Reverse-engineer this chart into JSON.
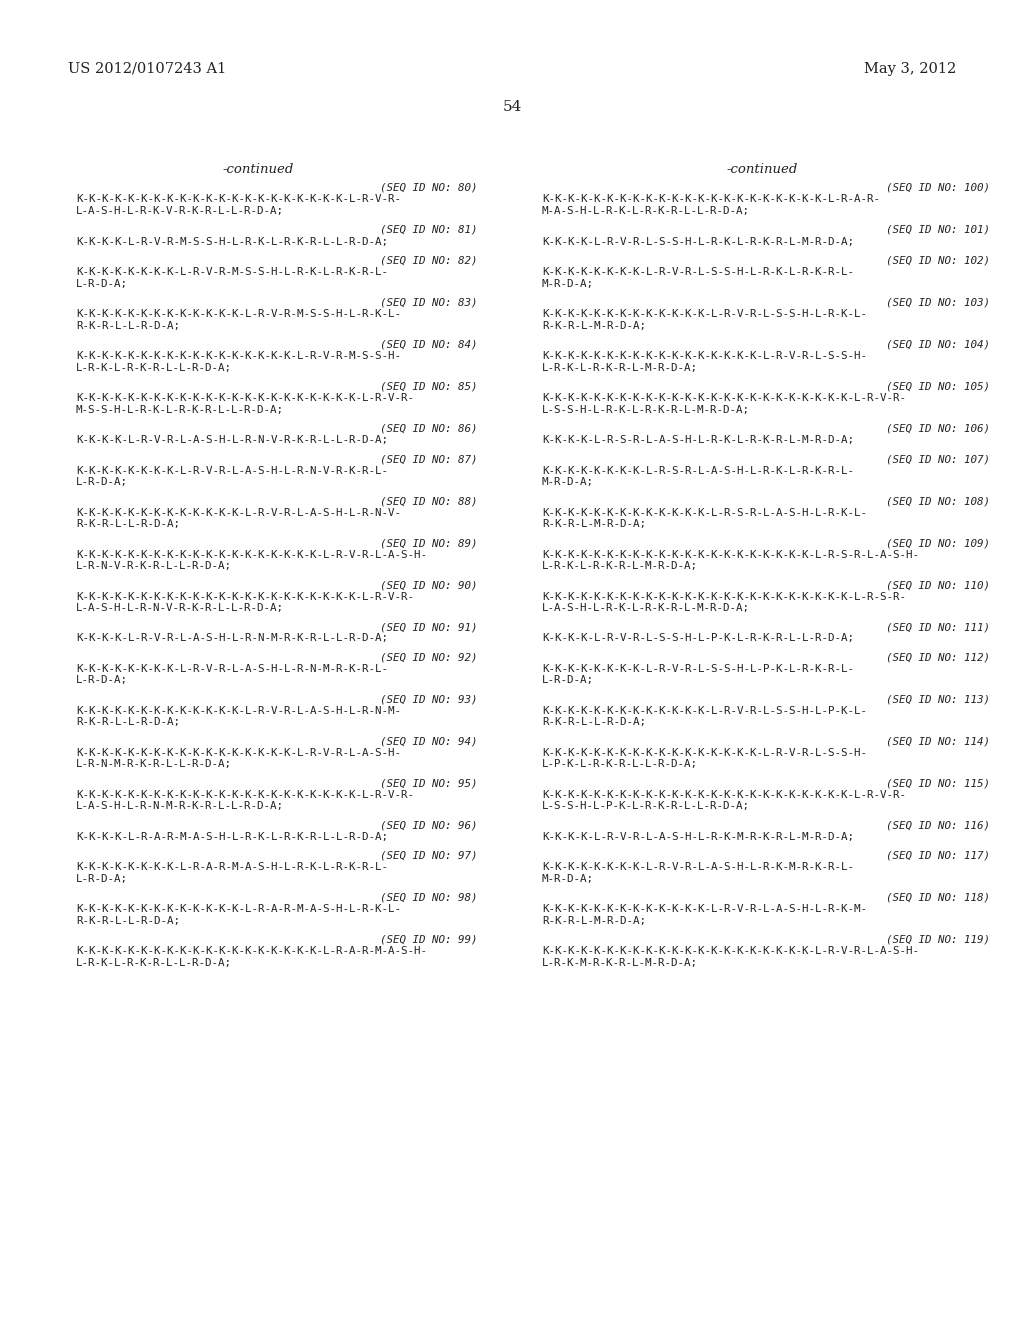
{
  "bg_color": "#ffffff",
  "header_left": "US 2012/0107243 A1",
  "header_right": "May 3, 2012",
  "page_number": "54",
  "continued_left": "-continued",
  "continued_right": "-continued",
  "left_column": [
    {
      "seq": "(SEQ ID NO: 80)",
      "text": "K-K-K-K-K-K-K-K-K-K-K-K-K-K-K-K-K-K-K-K-K-L-R-V-R-\nL-A-S-H-L-R-K-V-R-K-R-L-L-R-D-A;"
    },
    {
      "seq": "(SEQ ID NO: 81)",
      "text": "K-K-K-K-L-R-V-R-M-S-S-H-L-R-K-L-R-K-R-L-L-R-D-A;"
    },
    {
      "seq": "(SEQ ID NO: 82)",
      "text": "K-K-K-K-K-K-K-K-L-R-V-R-M-S-S-H-L-R-K-L-R-K-R-L-\nL-R-D-A;"
    },
    {
      "seq": "(SEQ ID NO: 83)",
      "text": "K-K-K-K-K-K-K-K-K-K-K-K-K-L-R-V-R-M-S-S-H-L-R-K-L-\nR-K-R-L-L-R-D-A;"
    },
    {
      "seq": "(SEQ ID NO: 84)",
      "text": "K-K-K-K-K-K-K-K-K-K-K-K-K-K-K-K-K-L-R-V-R-M-S-S-H-\nL-R-K-L-R-K-R-L-L-R-D-A;"
    },
    {
      "seq": "(SEQ ID NO: 85)",
      "text": "K-K-K-K-K-K-K-K-K-K-K-K-K-K-K-K-K-K-K-K-K-K-L-R-V-R-\nM-S-S-H-L-R-K-L-R-K-R-L-L-R-D-A;"
    },
    {
      "seq": "(SEQ ID NO: 86)",
      "text": "K-K-K-K-L-R-V-R-L-A-S-H-L-R-N-V-R-K-R-L-L-R-D-A;"
    },
    {
      "seq": "(SEQ ID NO: 87)",
      "text": "K-K-K-K-K-K-K-K-L-R-V-R-L-A-S-H-L-R-N-V-R-K-R-L-\nL-R-D-A;"
    },
    {
      "seq": "(SEQ ID NO: 88)",
      "text": "K-K-K-K-K-K-K-K-K-K-K-K-K-L-R-V-R-L-A-S-H-L-R-N-V-\nR-K-R-L-L-R-D-A;"
    },
    {
      "seq": "(SEQ ID NO: 89)",
      "text": "K-K-K-K-K-K-K-K-K-K-K-K-K-K-K-K-K-K-K-L-R-V-R-L-A-S-H-\nL-R-N-V-R-K-R-L-L-R-D-A;"
    },
    {
      "seq": "(SEQ ID NO: 90)",
      "text": "K-K-K-K-K-K-K-K-K-K-K-K-K-K-K-K-K-K-K-K-K-K-L-R-V-R-\nL-A-S-H-L-R-N-V-R-K-R-L-L-R-D-A;"
    },
    {
      "seq": "(SEQ ID NO: 91)",
      "text": "K-K-K-K-L-R-V-R-L-A-S-H-L-R-N-M-R-K-R-L-L-R-D-A;"
    },
    {
      "seq": "(SEQ ID NO: 92)",
      "text": "K-K-K-K-K-K-K-K-L-R-V-R-L-A-S-H-L-R-N-M-R-K-R-L-\nL-R-D-A;"
    },
    {
      "seq": "(SEQ ID NO: 93)",
      "text": "K-K-K-K-K-K-K-K-K-K-K-K-K-L-R-V-R-L-A-S-H-L-R-N-M-\nR-K-R-L-L-R-D-A;"
    },
    {
      "seq": "(SEQ ID NO: 94)",
      "text": "K-K-K-K-K-K-K-K-K-K-K-K-K-K-K-K-K-L-R-V-R-L-A-S-H-\nL-R-N-M-R-K-R-L-L-R-D-A;"
    },
    {
      "seq": "(SEQ ID NO: 95)",
      "text": "K-K-K-K-K-K-K-K-K-K-K-K-K-K-K-K-K-K-K-K-K-K-L-R-V-R-\nL-A-S-H-L-R-N-M-R-K-R-L-L-R-D-A;"
    },
    {
      "seq": "(SEQ ID NO: 96)",
      "text": "K-K-K-K-L-R-A-R-M-A-S-H-L-R-K-L-R-K-R-L-L-R-D-A;"
    },
    {
      "seq": "(SEQ ID NO: 97)",
      "text": "K-K-K-K-K-K-K-K-L-R-A-R-M-A-S-H-L-R-K-L-R-K-R-L-\nL-R-D-A;"
    },
    {
      "seq": "(SEQ ID NO: 98)",
      "text": "K-K-K-K-K-K-K-K-K-K-K-K-K-L-R-A-R-M-A-S-H-L-R-K-L-\nR-K-R-L-L-R-D-A;"
    },
    {
      "seq": "(SEQ ID NO: 99)",
      "text": "K-K-K-K-K-K-K-K-K-K-K-K-K-K-K-K-K-K-K-L-R-A-R-M-A-S-H-\nL-R-K-L-R-K-R-L-L-R-D-A;"
    }
  ],
  "right_column": [
    {
      "seq": "(SEQ ID NO: 100)",
      "text": "K-K-K-K-K-K-K-K-K-K-K-K-K-K-K-K-K-K-K-K-K-K-L-R-A-R-\nM-A-S-H-L-R-K-L-R-K-R-L-L-R-D-A;"
    },
    {
      "seq": "(SEQ ID NO: 101)",
      "text": "K-K-K-K-L-R-V-R-L-S-S-H-L-R-K-L-R-K-R-L-M-R-D-A;"
    },
    {
      "seq": "(SEQ ID NO: 102)",
      "text": "K-K-K-K-K-K-K-K-L-R-V-R-L-S-S-H-L-R-K-L-R-K-R-L-\nM-R-D-A;"
    },
    {
      "seq": "(SEQ ID NO: 103)",
      "text": "K-K-K-K-K-K-K-K-K-K-K-K-K-L-R-V-R-L-S-S-H-L-R-K-L-\nR-K-R-L-M-R-D-A;"
    },
    {
      "seq": "(SEQ ID NO: 104)",
      "text": "K-K-K-K-K-K-K-K-K-K-K-K-K-K-K-K-K-L-R-V-R-L-S-S-H-\nL-R-K-L-R-K-R-L-M-R-D-A;"
    },
    {
      "seq": "(SEQ ID NO: 105)",
      "text": "K-K-K-K-K-K-K-K-K-K-K-K-K-K-K-K-K-K-K-K-K-K-K-K-L-R-V-R-\nL-S-S-H-L-R-K-L-R-K-R-L-M-R-D-A;"
    },
    {
      "seq": "(SEQ ID NO: 106)",
      "text": "K-K-K-K-L-R-S-R-L-A-S-H-L-R-K-L-R-K-R-L-M-R-D-A;"
    },
    {
      "seq": "(SEQ ID NO: 107)",
      "text": "K-K-K-K-K-K-K-K-L-R-S-R-L-A-S-H-L-R-K-L-R-K-R-L-\nM-R-D-A;"
    },
    {
      "seq": "(SEQ ID NO: 108)",
      "text": "K-K-K-K-K-K-K-K-K-K-K-K-K-L-R-S-R-L-A-S-H-L-R-K-L-\nR-K-R-L-M-R-D-A;"
    },
    {
      "seq": "(SEQ ID NO: 109)",
      "text": "K-K-K-K-K-K-K-K-K-K-K-K-K-K-K-K-K-K-K-K-K-L-R-S-R-L-A-S-H-\nL-R-K-L-R-K-R-L-M-R-D-A;"
    },
    {
      "seq": "(SEQ ID NO: 110)",
      "text": "K-K-K-K-K-K-K-K-K-K-K-K-K-K-K-K-K-K-K-K-K-K-K-K-L-R-S-R-\nL-A-S-H-L-R-K-L-R-K-R-L-M-R-D-A;"
    },
    {
      "seq": "(SEQ ID NO: 111)",
      "text": "K-K-K-K-L-R-V-R-L-S-S-H-L-P-K-L-R-K-R-L-L-R-D-A;"
    },
    {
      "seq": "(SEQ ID NO: 112)",
      "text": "K-K-K-K-K-K-K-K-L-R-V-R-L-S-S-H-L-P-K-L-R-K-R-L-\nL-R-D-A;"
    },
    {
      "seq": "(SEQ ID NO: 113)",
      "text": "K-K-K-K-K-K-K-K-K-K-K-K-K-L-R-V-R-L-S-S-H-L-P-K-L-\nR-K-R-L-L-R-D-A;"
    },
    {
      "seq": "(SEQ ID NO: 114)",
      "text": "K-K-K-K-K-K-K-K-K-K-K-K-K-K-K-K-K-L-R-V-R-L-S-S-H-\nL-P-K-L-R-K-R-L-L-R-D-A;"
    },
    {
      "seq": "(SEQ ID NO: 115)",
      "text": "K-K-K-K-K-K-K-K-K-K-K-K-K-K-K-K-K-K-K-K-K-K-K-K-L-R-V-R-\nL-S-S-H-L-P-K-L-R-K-R-L-L-R-D-A;"
    },
    {
      "seq": "(SEQ ID NO: 116)",
      "text": "K-K-K-K-L-R-V-R-L-A-S-H-L-R-K-M-R-K-R-L-M-R-D-A;"
    },
    {
      "seq": "(SEQ ID NO: 117)",
      "text": "K-K-K-K-K-K-K-K-L-R-V-R-L-A-S-H-L-R-K-M-R-K-R-L-\nM-R-D-A;"
    },
    {
      "seq": "(SEQ ID NO: 118)",
      "text": "K-K-K-K-K-K-K-K-K-K-K-K-K-L-R-V-R-L-A-S-H-L-R-K-M-\nR-K-R-L-M-R-D-A;"
    },
    {
      "seq": "(SEQ ID NO: 119)",
      "text": "K-K-K-K-K-K-K-K-K-K-K-K-K-K-K-K-K-K-K-K-K-L-R-V-R-L-A-S-H-\nL-R-K-M-R-K-R-L-M-R-D-A;"
    }
  ]
}
